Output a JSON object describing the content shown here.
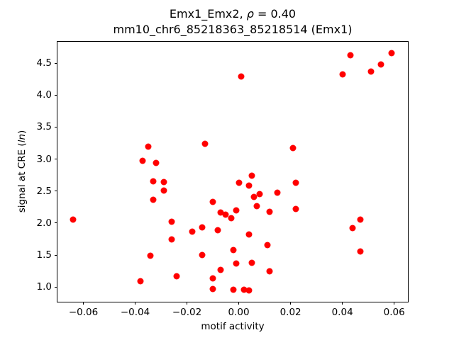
{
  "figure": {
    "title_parts": {
      "prefix": "Emx1_Emx2, ",
      "rho": "ρ",
      "suffix": " = 0.40"
    },
    "subtitle": "mm10_chr6_85218363_85218514 (Emx1)"
  },
  "chart_data": {
    "type": "scatter",
    "title": "Emx1_Emx2, ρ = 0.40",
    "subtitle": "mm10_chr6_85218363_85218514 (Emx1)",
    "correlation_rho": 0.4,
    "xlabel": "motif activity",
    "ylabel": "signal at CRE (ln)",
    "ylabel_parts": {
      "prefix": "signal at CRE (",
      "italic": "ln",
      "suffix": ")"
    },
    "marker_color": "#ff0000",
    "marker_diameter_px": 9,
    "grid": false,
    "legend": null,
    "xlim": [
      -0.07,
      0.0653
    ],
    "ylim": [
      0.769,
      4.834
    ],
    "x_ticks": [
      {
        "v": -0.06,
        "label": "−0.06"
      },
      {
        "v": -0.04,
        "label": "−0.04"
      },
      {
        "v": -0.02,
        "label": "−0.02"
      },
      {
        "v": 0.0,
        "label": "0.00"
      },
      {
        "v": 0.02,
        "label": "0.02"
      },
      {
        "v": 0.04,
        "label": "0.04"
      },
      {
        "v": 0.06,
        "label": "0.06"
      }
    ],
    "y_ticks": [
      {
        "v": 1.0,
        "label": "1.0"
      },
      {
        "v": 1.5,
        "label": "1.5"
      },
      {
        "v": 2.0,
        "label": "2.0"
      },
      {
        "v": 2.5,
        "label": "2.5"
      },
      {
        "v": 3.0,
        "label": "3.0"
      },
      {
        "v": 3.5,
        "label": "3.5"
      },
      {
        "v": 4.0,
        "label": "4.0"
      },
      {
        "v": 4.5,
        "label": "4.5"
      }
    ],
    "points": [
      [
        -0.035,
        3.19
      ],
      [
        -0.037,
        2.97
      ],
      [
        -0.032,
        2.94
      ],
      [
        -0.013,
        3.24
      ],
      [
        0.001,
        4.29
      ],
      [
        0.043,
        4.62
      ],
      [
        0.04,
        4.33
      ],
      [
        0.051,
        4.37
      ],
      [
        0.055,
        4.48
      ],
      [
        0.059,
        4.66
      ],
      [
        0.021,
        3.17
      ],
      [
        0.022,
        2.63
      ],
      [
        0.005,
        2.74
      ],
      [
        0.0,
        2.63
      ],
      [
        0.004,
        2.58
      ],
      [
        0.006,
        2.41
      ],
      [
        0.008,
        2.45
      ],
      [
        0.015,
        2.48
      ],
      [
        -0.01,
        2.33
      ],
      [
        0.007,
        2.26
      ],
      [
        0.022,
        2.22
      ],
      [
        -0.007,
        2.16
      ],
      [
        -0.001,
        2.2
      ],
      [
        0.012,
        2.18
      ],
      [
        -0.005,
        2.13
      ],
      [
        -0.003,
        2.08
      ],
      [
        -0.014,
        1.93
      ],
      [
        -0.008,
        1.89
      ],
      [
        0.004,
        1.82
      ],
      [
        -0.033,
        2.65
      ],
      [
        -0.029,
        2.64
      ],
      [
        -0.029,
        2.51
      ],
      [
        -0.033,
        2.36
      ],
      [
        -0.064,
        2.05
      ],
      [
        -0.026,
        2.02
      ],
      [
        -0.018,
        1.87
      ],
      [
        -0.026,
        1.74
      ],
      [
        -0.034,
        1.49
      ],
      [
        -0.038,
        1.09
      ],
      [
        -0.002,
        1.58
      ],
      [
        0.011,
        1.65
      ],
      [
        -0.001,
        1.37
      ],
      [
        0.005,
        1.38
      ],
      [
        -0.007,
        1.27
      ],
      [
        0.012,
        1.25
      ],
      [
        -0.01,
        1.13
      ],
      [
        -0.01,
        0.97
      ],
      [
        -0.002,
        0.96
      ],
      [
        0.002,
        0.96
      ],
      [
        0.004,
        0.95
      ],
      [
        -0.024,
        1.17
      ],
      [
        0.047,
        2.05
      ],
      [
        0.044,
        1.92
      ],
      [
        0.047,
        1.56
      ],
      [
        -0.014,
        1.5
      ]
    ]
  }
}
